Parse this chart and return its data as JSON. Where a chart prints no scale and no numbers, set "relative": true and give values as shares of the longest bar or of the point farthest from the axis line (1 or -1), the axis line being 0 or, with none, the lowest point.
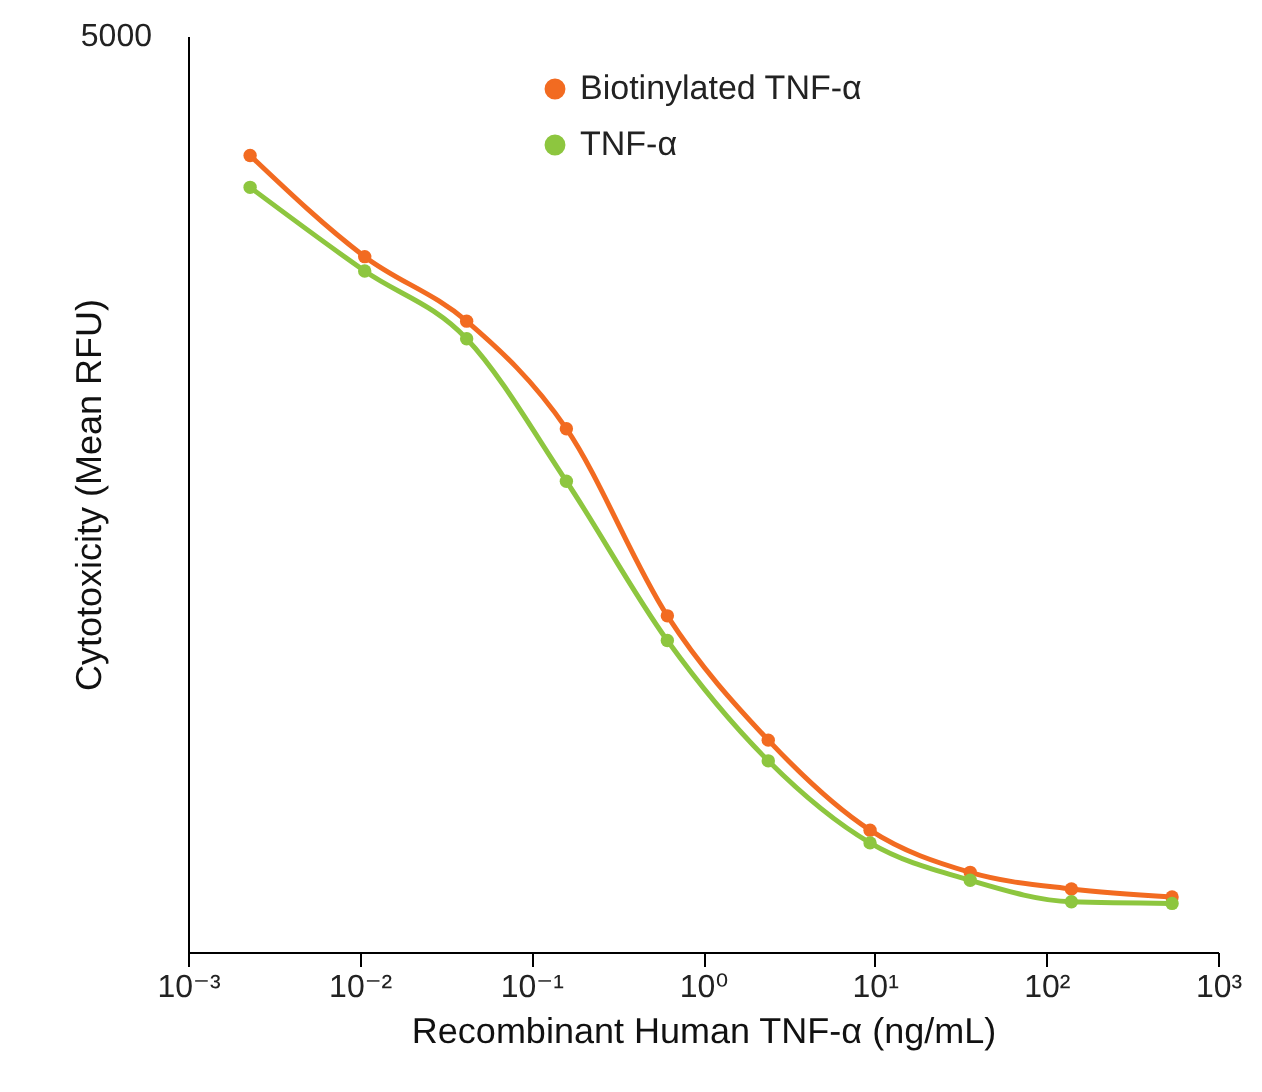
{
  "chart_data": {
    "type": "line",
    "relative": true,
    "log": "x",
    "marker": "circle",
    "legend": "top",
    "xlabel": "Recombinant Human TNF-α (ng/mL)",
    "ylabel": "Cytotoxicity (Mean RFU)",
    "annotations": [
      "5000"
    ],
    "xlim": [
      0.001,
      1000
    ],
    "xticks": [
      {
        "value": 0.001,
        "label": "10⁻³"
      },
      {
        "value": 0.01,
        "label": "10⁻²"
      },
      {
        "value": 0.1,
        "label": "10⁻¹"
      },
      {
        "value": 1,
        "label": "10⁰"
      },
      {
        "value": 10,
        "label": "10¹"
      },
      {
        "value": 100,
        "label": "10²"
      },
      {
        "value": 1000,
        "label": "10³"
      }
    ],
    "x": [
      0.0023,
      0.0107,
      0.042,
      0.16,
      0.62,
      2.4,
      9.4,
      36,
      140,
      540
    ],
    "series": [
      {
        "name": "Biotinylated TNF-α",
        "color": "#f26b21",
        "values": [
          1.0,
          0.873,
          0.792,
          0.657,
          0.422,
          0.266,
          0.153,
          0.1,
          0.079,
          0.069
        ]
      },
      {
        "name": "TNF-α",
        "color": "#8dc63f",
        "values": [
          0.96,
          0.855,
          0.77,
          0.591,
          0.391,
          0.24,
          0.137,
          0.09,
          0.063,
          0.061
        ]
      }
    ]
  }
}
